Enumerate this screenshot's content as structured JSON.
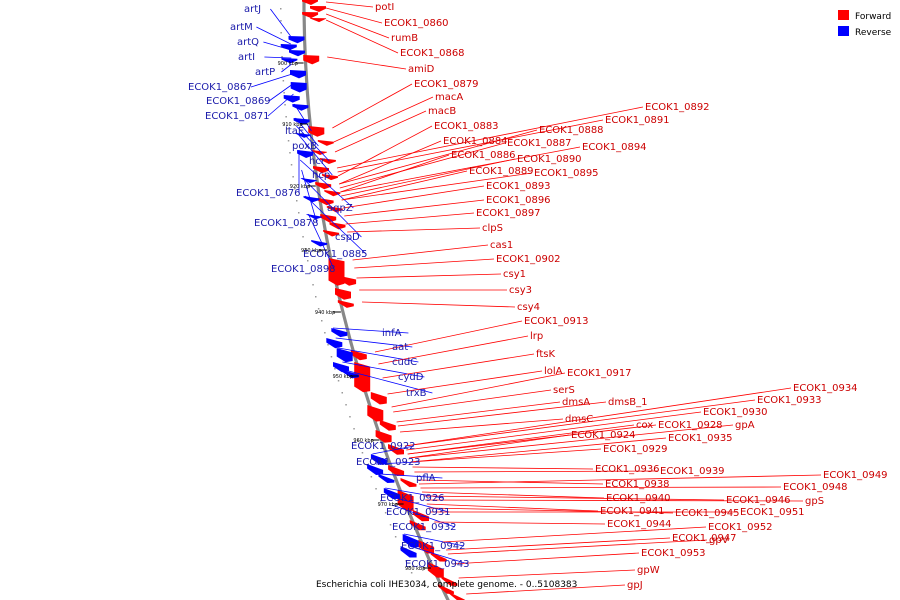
{
  "caption": "Escherichia coli IHE3034, complete genome. - 0..5108383",
  "legend": [
    {
      "label": "Forward",
      "color": "#ff0000"
    },
    {
      "label": "Reverse",
      "color": "#0000ff"
    }
  ],
  "colors": {
    "forward": "#ff0000",
    "forward_label": "#cc0000",
    "reverse": "#0000ff",
    "reverse_label": "#1a1aaa",
    "backbone": "#888888"
  },
  "ticks": [
    "900 kbp",
    "910 kbp",
    "920 kbp",
    "930 kbp",
    "940 kbp",
    "950 kbp",
    "960 kbp",
    "970 kbp",
    "980 kbp"
  ],
  "reverse_labels": [
    "artJ",
    "artM",
    "artQ",
    "artI",
    "artP",
    "ECOK1_0867",
    "ECOK1_0869",
    "ECOK1_0871",
    "ltaE",
    "poxB",
    "hcr",
    "hcp",
    "ECOK1_0876",
    "aqpZ",
    "ECOK1_0878",
    "cspD",
    "ECOK1_0885",
    "ECOK1_0898",
    "infA",
    "aat",
    "cudC",
    "cydD",
    "trxB",
    "ECOK1_0922",
    "ECOK1_0923",
    "pflA",
    "ECOK1_0926",
    "ECOK1_0931",
    "ECOK1_0932",
    "ECOK1_0942",
    "ECOK1_0943"
  ],
  "forward_labels": [
    "potI",
    "ECOK1_0860",
    "rumB",
    "ECOK1_0868",
    "amiD",
    "ECOK1_0879",
    "macA",
    "macB",
    "ECOK1_0892",
    "ECOK1_0891",
    "ECOK1_0883",
    "ECOK1_0888",
    "ECOK1_0884",
    "ECOK1_0887",
    "ECOK1_0894",
    "ECOK1_0886",
    "ECOK1_0890",
    "ECOK1_0889",
    "ECOK1_0895",
    "ECOK1_0893",
    "ECOK1_0896",
    "ECOK1_0897",
    "clpS",
    "cas1",
    "ECOK1_0902",
    "csy1",
    "csy3",
    "csy4",
    "ECOK1_0913",
    "lrp",
    "ftsK",
    "lolA",
    "ECOK1_0917",
    "serS",
    "dmsA",
    "dmsB_1",
    "dmsC",
    "ECOK1_0934",
    "ECOK1_0933",
    "ECOK1_0930",
    "cox",
    "ECOK1_0928",
    "gpA",
    "ECOK1_0924",
    "ECOK1_0935",
    "ECOK1_0929",
    "ECOK1_0936",
    "ECOK1_0939",
    "ECOK1_0938",
    "ECOK1_0949",
    "ECOK1_0948",
    "ECOK1_0940",
    "ECOK1_0946",
    "gpS",
    "ECOK1_0941",
    "ECOK1_0945",
    "ECOK1_0951",
    "ECOK1_0944",
    "ECOK1_0952",
    "ECOK1_0947",
    "gpV",
    "ECOK1_0953",
    "gpW",
    "gpJ"
  ]
}
